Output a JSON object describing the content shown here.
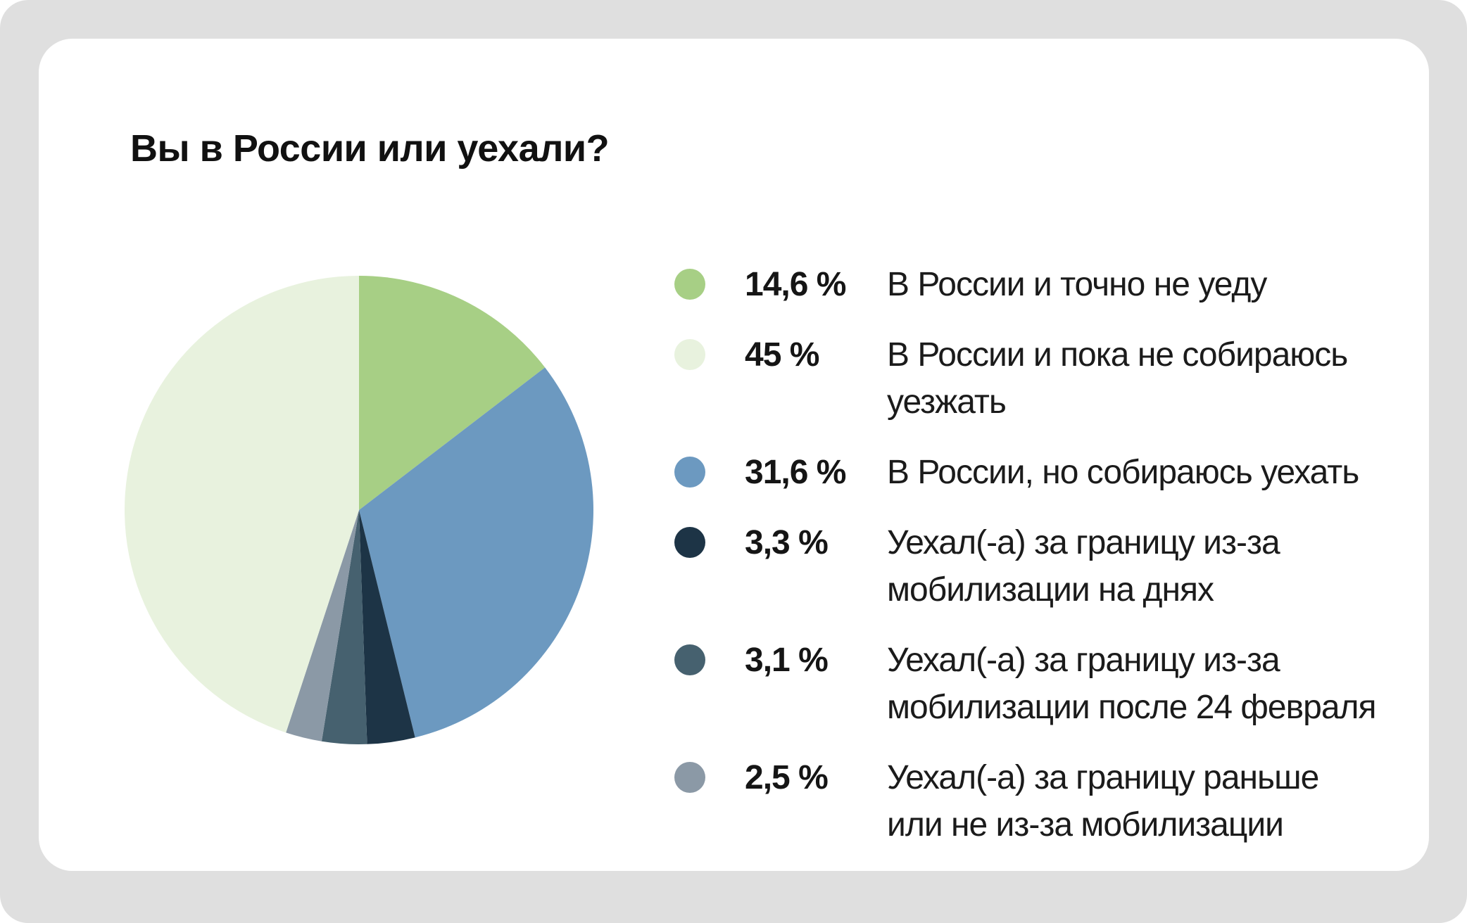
{
  "title": "Вы в России или уехали?",
  "colors": {
    "page_background": "#DFDFDF",
    "card_background": "#FFFFFF",
    "title_text": "#111111",
    "body_text": "#1B1B1B"
  },
  "chart_data": {
    "type": "pie",
    "title": "Вы в России или уехали?",
    "unit": "%",
    "start_angle_deg": 0,
    "direction": "clockwise",
    "legend_position": "right",
    "slices": [
      {
        "label": "В России и точно не уеду",
        "display_label": "В России и точно не уеду",
        "value": 14.6,
        "percent_label": "14,6 %",
        "color": "#A7CF85"
      },
      {
        "label": "В России и пока не собираюсь уезжать",
        "display_label": "В России и пока не собираюсь\nуезжать",
        "value": 45,
        "percent_label": "45 %",
        "color": "#E8F2DE"
      },
      {
        "label": "В России, но собираюсь уехать",
        "display_label": "В России, но собираюсь уехать",
        "value": 31.6,
        "percent_label": "31,6 %",
        "color": "#6C99C0"
      },
      {
        "label": "Уехал(-а) за границу из-за мобилизации на днях",
        "display_label": "Уехал(-а) за границу из-за\nмобилизации на днях",
        "value": 3.3,
        "percent_label": "3,3 %",
        "color": "#1D3446"
      },
      {
        "label": "Уехал(-а) за границу из-за мобилизации после 24 февраля",
        "display_label": "Уехал(-а) за границу из-за\nмобилизации после 24 февраля",
        "value": 3.1,
        "percent_label": "3,1 %",
        "color": "#46616F"
      },
      {
        "label": "Уехал(-а) за границу раньше или не из-за мобилизации",
        "display_label": "Уехал(-а) за границу раньше\nили не из-за мобилизации",
        "value": 2.5,
        "percent_label": "2,5 %",
        "color": "#8B99A6"
      }
    ],
    "pie_order": [
      0,
      2,
      3,
      4,
      5,
      1
    ]
  }
}
